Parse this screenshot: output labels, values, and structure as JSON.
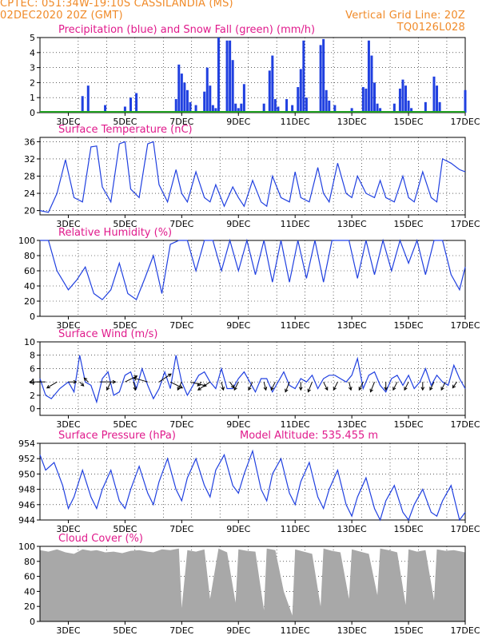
{
  "header": {
    "line1_left": "CPTEC:  051:34W-19:10S  CASSILANDIA (MS)",
    "line2_left": "02DEC2020 20Z (GMT)",
    "line2_right": "Vertical Grid Line: 20Z",
    "line3_right": "TQ0126L028"
  },
  "colors": {
    "header": "#f08a28",
    "title": "#e01a8c",
    "line": "#2040e0",
    "snow": "#20a020",
    "cloud": "#a8a8a8",
    "grid": "#000000"
  },
  "x_ticks": [
    "3DEC",
    "5DEC",
    "7DEC",
    "9DEC",
    "11DEC",
    "13DEC",
    "15DEC",
    "17DEC"
  ],
  "chart_data": [
    {
      "id": "precip",
      "type": "bar",
      "title": "Precipitation (blue) and Snow Fall (green) (mm/h)",
      "ylim": [
        0,
        5
      ],
      "yticks": [
        0,
        1,
        2,
        3,
        4,
        5
      ],
      "x": [
        3.5,
        3.7,
        4.3,
        5.0,
        5.2,
        5.4,
        6.8,
        6.9,
        7.0,
        7.1,
        7.2,
        7.3,
        7.5,
        7.8,
        7.9,
        8.0,
        8.1,
        8.2,
        8.3,
        8.6,
        8.7,
        8.8,
        8.9,
        9.0,
        9.1,
        9.2,
        9.9,
        10.1,
        10.2,
        10.3,
        10.4,
        10.7,
        10.9,
        11.1,
        11.2,
        11.3,
        11.4,
        11.9,
        12.0,
        12.1,
        12.2,
        12.4,
        13.0,
        13.4,
        13.5,
        13.6,
        13.7,
        13.8,
        13.9,
        14.0,
        14.5,
        14.7,
        14.8,
        14.9,
        15.0,
        15.1,
        15.6,
        15.9,
        16.0,
        16.1,
        17.0
      ],
      "values": [
        1.1,
        1.8,
        0.5,
        0.4,
        1.0,
        1.3,
        0.9,
        3.2,
        2.6,
        2.0,
        1.5,
        0.7,
        0.5,
        1.4,
        3.0,
        1.8,
        0.5,
        0.3,
        5.0,
        4.8,
        4.8,
        3.5,
        0.6,
        0.3,
        0.6,
        1.9,
        0.6,
        2.8,
        3.8,
        0.9,
        0.4,
        0.9,
        0.5,
        1.7,
        2.9,
        4.8,
        1.0,
        4.5,
        4.9,
        1.5,
        0.8,
        0.5,
        0.3,
        1.7,
        1.6,
        4.8,
        3.8,
        2.0,
        0.6,
        0.3,
        0.6,
        1.6,
        2.2,
        1.8,
        0.8,
        0.3,
        0.7,
        2.4,
        1.8,
        0.7,
        1.5
      ],
      "snow_values": [
        0
      ]
    },
    {
      "id": "temp",
      "type": "line",
      "title": "Surface Temperature (nC)",
      "ylim": [
        19,
        37
      ],
      "yticks": [
        20,
        24,
        28,
        32,
        36
      ],
      "x": [
        2.0,
        2.3,
        2.6,
        2.9,
        3.2,
        3.5,
        3.8,
        4.0,
        4.2,
        4.5,
        4.8,
        5.0,
        5.2,
        5.5,
        5.8,
        6.0,
        6.2,
        6.5,
        6.8,
        7.0,
        7.2,
        7.5,
        7.8,
        8.0,
        8.2,
        8.5,
        8.8,
        9.0,
        9.2,
        9.5,
        9.8,
        10.0,
        10.2,
        10.5,
        10.8,
        11.0,
        11.2,
        11.5,
        11.8,
        12.0,
        12.2,
        12.5,
        12.8,
        13.0,
        13.2,
        13.5,
        13.8,
        14.0,
        14.2,
        14.5,
        14.8,
        15.0,
        15.2,
        15.5,
        15.8,
        16.0,
        16.2,
        16.5,
        16.8,
        17.0
      ],
      "values": [
        20,
        19.6,
        24,
        31.8,
        23,
        22,
        34.8,
        35,
        25.5,
        22,
        35.5,
        36,
        25,
        23,
        35.5,
        36,
        26,
        22,
        29.5,
        24,
        22,
        29,
        23,
        22,
        26,
        21,
        25.5,
        23,
        21,
        27,
        22,
        21,
        28,
        23,
        22,
        29,
        23,
        22,
        30,
        24,
        22,
        31,
        24,
        23,
        28,
        24,
        23,
        27,
        23,
        22,
        28,
        23,
        22,
        29,
        23,
        22,
        32,
        31,
        29.5,
        29
      ]
    },
    {
      "id": "rh",
      "type": "line",
      "title": "Relative Humidity (%)",
      "ylim": [
        0,
        100
      ],
      "yticks": [
        0,
        20,
        40,
        60,
        80,
        100
      ],
      "x": [
        2.0,
        2.3,
        2.6,
        3.0,
        3.3,
        3.6,
        3.9,
        4.2,
        4.5,
        4.8,
        5.1,
        5.4,
        5.7,
        6.0,
        6.3,
        6.6,
        6.9,
        7.2,
        7.5,
        7.8,
        8.1,
        8.4,
        8.7,
        9.0,
        9.3,
        9.6,
        9.9,
        10.2,
        10.5,
        10.8,
        11.1,
        11.4,
        11.7,
        12.0,
        12.3,
        12.6,
        12.9,
        13.2,
        13.5,
        13.8,
        14.1,
        14.4,
        14.7,
        15.0,
        15.3,
        15.6,
        15.9,
        16.2,
        16.5,
        16.8,
        17.0
      ],
      "values": [
        100,
        100,
        60,
        35,
        48,
        65,
        30,
        22,
        35,
        70,
        30,
        22,
        50,
        80,
        30,
        95,
        100,
        100,
        60,
        100,
        100,
        60,
        100,
        60,
        100,
        55,
        100,
        45,
        100,
        45,
        100,
        50,
        100,
        45,
        100,
        100,
        100,
        50,
        100,
        55,
        100,
        60,
        100,
        70,
        100,
        55,
        100,
        100,
        55,
        35,
        65
      ]
    },
    {
      "id": "wind",
      "type": "line",
      "title": "Surface Wind (m/s)",
      "ylim": [
        -1,
        10
      ],
      "yticks": [
        0,
        2,
        4,
        6,
        8,
        10
      ],
      "x": [
        2.0,
        2.2,
        2.4,
        2.7,
        3.0,
        3.2,
        3.4,
        3.6,
        3.8,
        4.0,
        4.2,
        4.4,
        4.6,
        4.8,
        5.0,
        5.2,
        5.4,
        5.6,
        5.8,
        6.0,
        6.2,
        6.4,
        6.6,
        6.8,
        7.0,
        7.2,
        7.4,
        7.6,
        7.8,
        8.0,
        8.2,
        8.4,
        8.6,
        8.8,
        9.0,
        9.2,
        9.4,
        9.6,
        9.8,
        10.0,
        10.2,
        10.4,
        10.6,
        10.8,
        11.0,
        11.2,
        11.4,
        11.6,
        11.8,
        12.0,
        12.2,
        12.4,
        12.6,
        12.8,
        13.0,
        13.2,
        13.4,
        13.6,
        13.8,
        14.0,
        14.2,
        14.4,
        14.6,
        14.8,
        15.0,
        15.2,
        15.4,
        15.6,
        15.8,
        16.0,
        16.2,
        16.4,
        16.6,
        16.8,
        17.0
      ],
      "values": [
        4.5,
        2.0,
        1.5,
        3.0,
        4.0,
        2.5,
        8.0,
        4.0,
        3.5,
        1.0,
        4.5,
        5.5,
        2.0,
        2.5,
        5.0,
        5.5,
        3.0,
        6.0,
        3.5,
        1.5,
        3.0,
        5.5,
        3.0,
        8.0,
        4.0,
        2.0,
        3.5,
        5.0,
        5.5,
        4.0,
        3.0,
        6.0,
        3.0,
        3.0,
        4.5,
        5.5,
        4.0,
        2.5,
        4.5,
        4.5,
        2.5,
        4.0,
        5.5,
        3.5,
        3.0,
        4.5,
        4.0,
        5.0,
        3.0,
        4.5,
        5.0,
        5.0,
        4.5,
        4.0,
        5.0,
        7.5,
        3.0,
        5.0,
        5.5,
        3.5,
        2.5,
        4.5,
        5.0,
        3.5,
        5.0,
        3.0,
        4.0,
        6.0,
        3.5,
        5.0,
        4.0,
        3.5,
        6.5,
        4.5,
        3.0
      ],
      "arrow_x": [
        2.2,
        2.6,
        3.0,
        3.4,
        3.7,
        4.1,
        4.5,
        5.0,
        5.3,
        5.8,
        6.2,
        6.6,
        7.0,
        7.3,
        7.7,
        8.0,
        8.4,
        8.7,
        9.0,
        9.5,
        9.9,
        10.3,
        10.8,
        11.2,
        11.6,
        12.0,
        12.5,
        12.9,
        13.4,
        13.8,
        14.2,
        14.6,
        15.0,
        15.5,
        15.9,
        16.3,
        16.7
      ],
      "arrow_u": [
        -4,
        -2.5,
        2,
        1,
        -1,
        4,
        -1,
        3,
        0.5,
        -3.5,
        3,
        3,
        -1,
        4,
        -1,
        -3,
        0.5,
        1,
        -1,
        -1,
        0.5,
        -1,
        -1,
        0,
        -1,
        1,
        -1,
        0.5,
        -1,
        -1,
        0,
        -1,
        -1,
        0,
        -1,
        -1,
        -1
      ],
      "arrow_v": [
        0,
        -1.5,
        0,
        -1,
        1,
        0,
        -2,
        1.5,
        -2,
        1,
        2,
        -1.5,
        -2,
        -1,
        -1,
        -2,
        -2,
        -1.5,
        -2,
        -2,
        -2,
        -2,
        -2.5,
        -2,
        -2.5,
        -2,
        -2,
        -2,
        -2,
        -2.5,
        -2,
        -2,
        -2,
        -2,
        -2,
        -2,
        -1.5
      ]
    },
    {
      "id": "pres",
      "type": "line",
      "title": "Surface Pressure (hPa)",
      "subtitle": "Model Altitude: 535.455 m",
      "ylim": [
        944,
        954
      ],
      "yticks": [
        944,
        946,
        948,
        950,
        952,
        954
      ],
      "x": [
        2.0,
        2.2,
        2.5,
        2.8,
        3.0,
        3.2,
        3.5,
        3.8,
        4.0,
        4.2,
        4.5,
        4.8,
        5.0,
        5.2,
        5.5,
        5.8,
        6.0,
        6.2,
        6.5,
        6.8,
        7.0,
        7.2,
        7.5,
        7.8,
        8.0,
        8.2,
        8.5,
        8.8,
        9.0,
        9.2,
        9.5,
        9.8,
        10.0,
        10.2,
        10.5,
        10.8,
        11.0,
        11.2,
        11.5,
        11.8,
        12.0,
        12.2,
        12.5,
        12.8,
        13.0,
        13.2,
        13.5,
        13.8,
        14.0,
        14.2,
        14.5,
        14.8,
        15.0,
        15.2,
        15.5,
        15.8,
        16.0,
        16.2,
        16.5,
        16.8,
        17.0
      ],
      "values": [
        952.5,
        950.5,
        951.5,
        948.5,
        945.5,
        947,
        950.5,
        947,
        945.5,
        948,
        950.5,
        946.5,
        945.5,
        948,
        951,
        947.5,
        946,
        949,
        952,
        948,
        946.5,
        949.5,
        952,
        948.5,
        947,
        950.5,
        952.5,
        948.5,
        947.5,
        950,
        953,
        948,
        946.5,
        950,
        952,
        947.5,
        946,
        949,
        951.5,
        947,
        945.5,
        948,
        950.5,
        946,
        944.5,
        947,
        949.5,
        945.5,
        944,
        946.5,
        948.5,
        945,
        944,
        946,
        948,
        945,
        944.5,
        946.5,
        948.5,
        944,
        945
      ]
    },
    {
      "id": "cloud",
      "type": "area",
      "title": "Cloud Cover (%)",
      "ylim": [
        0,
        100
      ],
      "yticks": [
        0,
        20,
        40,
        60,
        80,
        100
      ],
      "x": [
        2.0,
        2.3,
        2.6,
        2.9,
        3.2,
        3.5,
        3.8,
        4.0,
        4.3,
        4.6,
        4.9,
        5.2,
        5.5,
        5.8,
        6.0,
        6.3,
        6.6,
        6.9,
        7.0,
        7.2,
        7.5,
        7.8,
        8.0,
        8.3,
        8.6,
        8.9,
        9.0,
        9.3,
        9.6,
        9.9,
        10.0,
        10.3,
        10.6,
        10.9,
        11.0,
        11.3,
        11.6,
        11.9,
        12.0,
        12.3,
        12.6,
        12.9,
        13.0,
        13.3,
        13.6,
        13.9,
        14.0,
        14.3,
        14.6,
        14.9,
        15.0,
        15.3,
        15.6,
        15.9,
        16.0,
        16.3,
        16.6,
        17.0
      ],
      "values": [
        95,
        93,
        96,
        92,
        90,
        96,
        94,
        95,
        92,
        93,
        91,
        94,
        95,
        93,
        92,
        96,
        95,
        97,
        18,
        95,
        93,
        96,
        30,
        97,
        92,
        25,
        96,
        94,
        93,
        15,
        97,
        95,
        40,
        8,
        96,
        93,
        90,
        20,
        97,
        94,
        92,
        30,
        96,
        93,
        90,
        35,
        97,
        95,
        92,
        22,
        96,
        93,
        95,
        28,
        96,
        94,
        95,
        92
      ]
    }
  ]
}
